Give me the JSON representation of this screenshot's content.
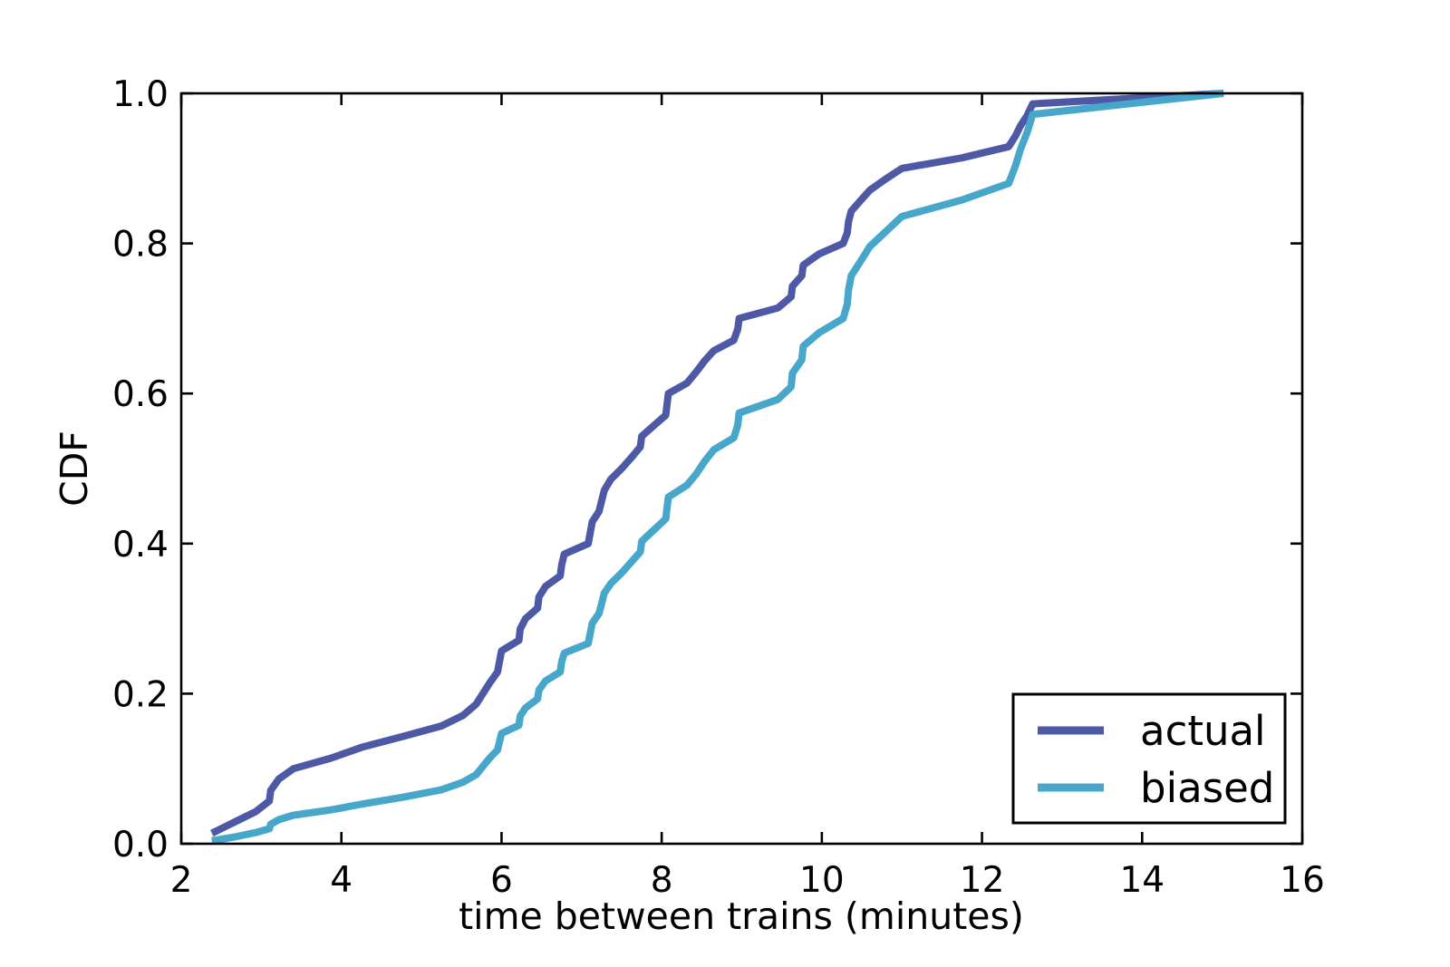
{
  "figure": {
    "background_color": "#ffffff",
    "frame_color": "#000000"
  },
  "chart_data": {
    "type": "line",
    "title": "",
    "xlabel": "time between trains (minutes)",
    "ylabel": "CDF",
    "xlim": [
      2,
      16
    ],
    "ylim": [
      0.0,
      1.0
    ],
    "grid": false,
    "legend_position": "lower right",
    "x_tick_labels": [
      "2",
      "4",
      "6",
      "8",
      "10",
      "12",
      "14",
      "16"
    ],
    "x_tick_values": [
      2,
      4,
      6,
      8,
      10,
      12,
      14,
      16
    ],
    "y_tick_labels": [
      "0.0",
      "0.2",
      "0.4",
      "0.6",
      "0.8",
      "1.0"
    ],
    "y_tick_values": [
      0.0,
      0.2,
      0.4,
      0.6,
      0.8,
      1.0
    ],
    "series": [
      {
        "name": "actual",
        "color": "#4E59A6",
        "x": [
          2.383,
          2.667,
          2.933,
          3.1,
          3.117,
          3.217,
          3.4,
          3.867,
          4.267,
          4.767,
          5.25,
          5.517,
          5.683,
          5.85,
          5.95,
          6.0,
          6.217,
          6.233,
          6.3,
          6.45,
          6.467,
          6.55,
          6.733,
          6.75,
          6.783,
          7.083,
          7.133,
          7.217,
          7.25,
          7.283,
          7.367,
          7.5,
          7.617,
          7.733,
          7.75,
          7.9,
          8.05,
          8.067,
          8.083,
          8.317,
          8.433,
          8.533,
          8.65,
          8.9,
          8.95,
          8.967,
          9.45,
          9.617,
          9.633,
          9.75,
          9.767,
          9.967,
          10.267,
          10.317,
          10.333,
          10.367,
          10.483,
          10.6,
          10.8,
          11.0,
          11.75,
          12.333,
          12.417,
          12.483,
          12.567,
          12.633,
          15.017
        ],
        "y": [
          0.014,
          0.029,
          0.043,
          0.057,
          0.071,
          0.086,
          0.1,
          0.114,
          0.129,
          0.143,
          0.157,
          0.171,
          0.186,
          0.214,
          0.229,
          0.257,
          0.271,
          0.286,
          0.3,
          0.314,
          0.329,
          0.343,
          0.357,
          0.371,
          0.386,
          0.4,
          0.429,
          0.443,
          0.457,
          0.471,
          0.486,
          0.5,
          0.514,
          0.529,
          0.543,
          0.557,
          0.571,
          0.586,
          0.6,
          0.614,
          0.629,
          0.643,
          0.657,
          0.671,
          0.686,
          0.7,
          0.714,
          0.729,
          0.743,
          0.757,
          0.771,
          0.786,
          0.8,
          0.814,
          0.829,
          0.843,
          0.857,
          0.871,
          0.886,
          0.9,
          0.914,
          0.929,
          0.943,
          0.957,
          0.971,
          0.986,
          1.0
        ]
      },
      {
        "name": "biased",
        "color": "#47A7CB",
        "x": [
          2.383,
          2.667,
          2.933,
          3.1,
          3.117,
          3.217,
          3.4,
          3.867,
          4.267,
          4.767,
          5.25,
          5.517,
          5.683,
          5.85,
          5.95,
          6.0,
          6.217,
          6.233,
          6.3,
          6.45,
          6.467,
          6.55,
          6.733,
          6.75,
          6.783,
          7.083,
          7.133,
          7.217,
          7.25,
          7.283,
          7.367,
          7.5,
          7.617,
          7.733,
          7.75,
          7.9,
          8.05,
          8.067,
          8.083,
          8.317,
          8.433,
          8.533,
          8.65,
          8.9,
          8.95,
          8.967,
          9.45,
          9.617,
          9.633,
          9.75,
          9.767,
          9.967,
          10.267,
          10.317,
          10.333,
          10.367,
          10.483,
          10.6,
          10.8,
          11.0,
          11.75,
          12.333,
          12.417,
          12.483,
          12.567,
          12.633,
          15.017
        ],
        "y": [
          0.004,
          0.009,
          0.015,
          0.02,
          0.026,
          0.032,
          0.038,
          0.045,
          0.053,
          0.062,
          0.072,
          0.082,
          0.092,
          0.114,
          0.125,
          0.147,
          0.158,
          0.17,
          0.181,
          0.193,
          0.205,
          0.217,
          0.229,
          0.242,
          0.254,
          0.267,
          0.294,
          0.307,
          0.32,
          0.334,
          0.347,
          0.361,
          0.375,
          0.389,
          0.403,
          0.418,
          0.433,
          0.448,
          0.462,
          0.478,
          0.493,
          0.509,
          0.525,
          0.541,
          0.558,
          0.574,
          0.592,
          0.609,
          0.627,
          0.645,
          0.663,
          0.681,
          0.7,
          0.719,
          0.738,
          0.757,
          0.776,
          0.796,
          0.816,
          0.836,
          0.858,
          0.88,
          0.903,
          0.926,
          0.949,
          0.972,
          1.0
        ]
      }
    ]
  },
  "legend": {
    "items": [
      {
        "label": "actual",
        "color": "#4E59A6"
      },
      {
        "label": "biased",
        "color": "#47A7CB"
      }
    ]
  }
}
